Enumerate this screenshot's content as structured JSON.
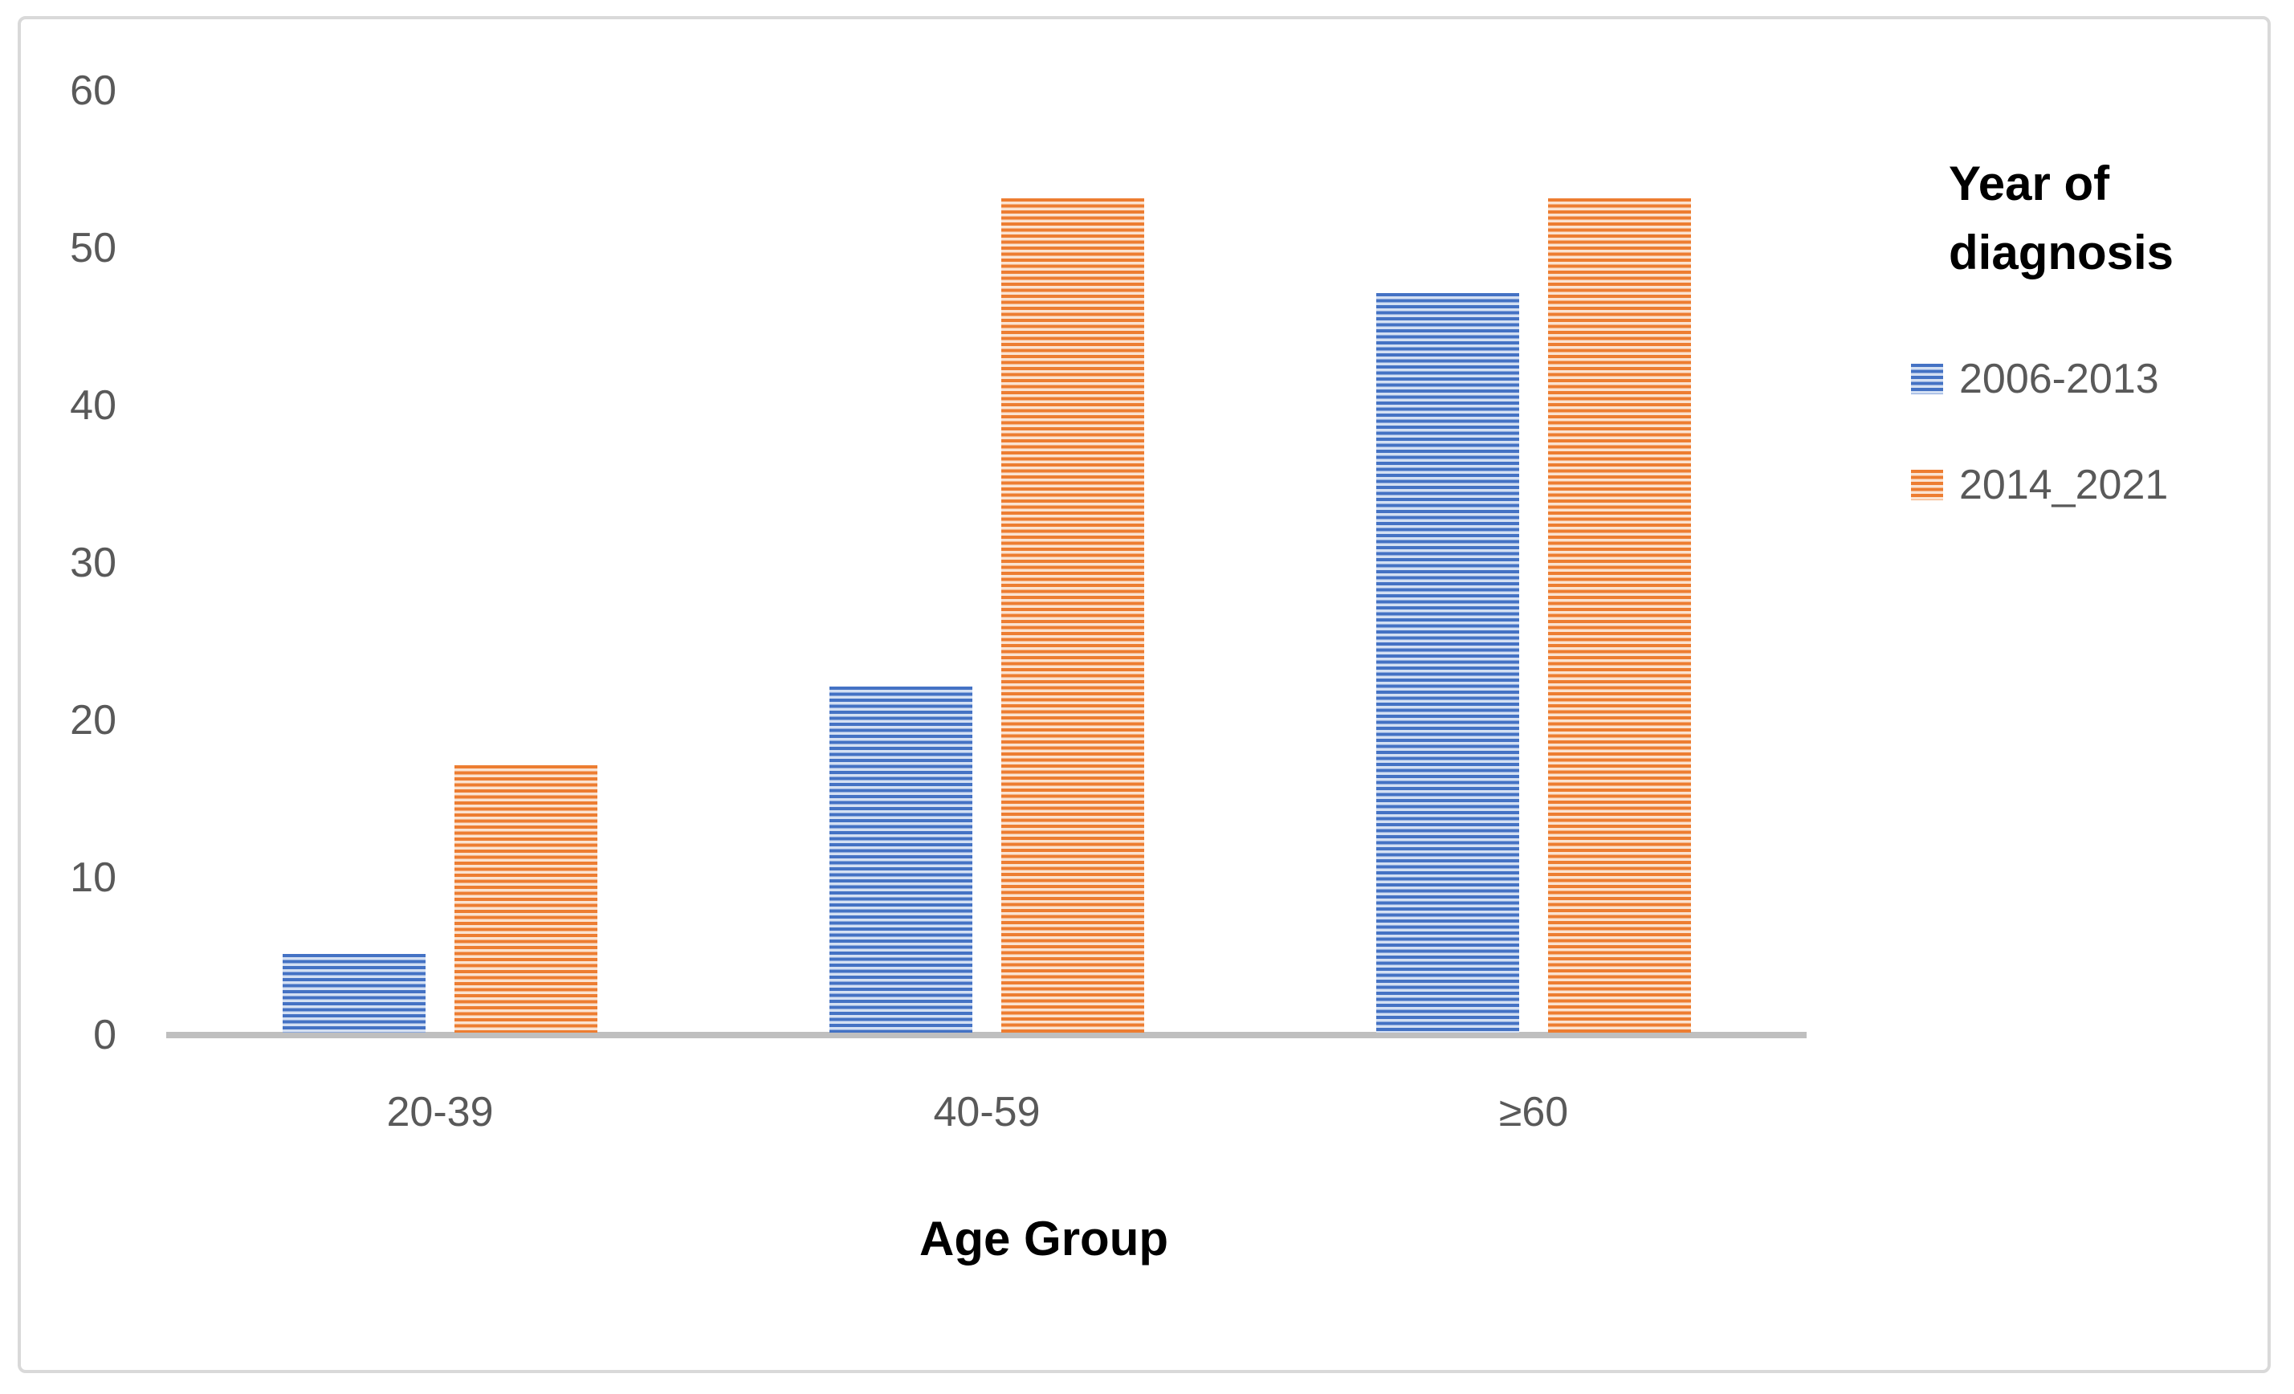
{
  "chart_data": {
    "type": "bar",
    "title": "",
    "categories": [
      "20-39",
      "40-59",
      "≥60"
    ],
    "series": [
      {
        "name": "2006-2013",
        "color": "#4472C4",
        "stripe_light": "#d4e0f3",
        "values": [
          5,
          22,
          47
        ]
      },
      {
        "name": "2014_2021",
        "color": "#ED7D31",
        "stripe_light": "#fbe3d1",
        "values": [
          17,
          53,
          53
        ]
      }
    ],
    "xlabel": "Age Group",
    "ylabel": "",
    "ylim": [
      0,
      60
    ],
    "yticks": [
      0,
      10,
      20,
      30,
      40,
      50,
      60
    ],
    "grid": false,
    "pattern": "horizontal-stripes",
    "legend_title": "Year of diagnosis",
    "legend_position": "right"
  },
  "colors": {
    "axis_line": "#bfbfbf",
    "tick_text": "#595959",
    "title_text": "#000000",
    "frame_border": "#d9d9d9",
    "background": "#ffffff"
  }
}
